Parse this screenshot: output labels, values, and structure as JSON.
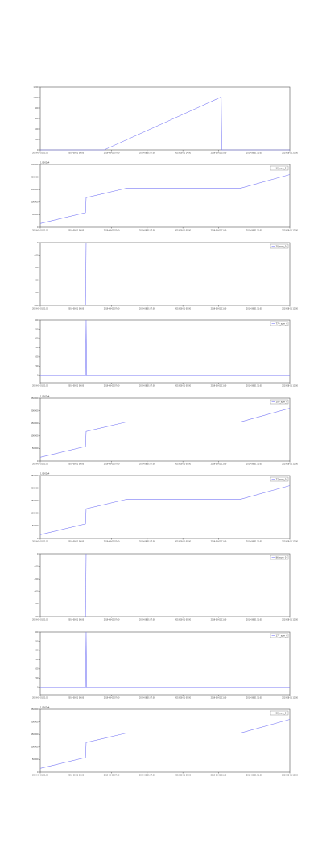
{
  "figure": {
    "line_color": "#7b7bf5",
    "frame_color": "#555555",
    "background": "#ffffff"
  },
  "chart_data": [
    {
      "type": "line",
      "title": "",
      "xlabel": "",
      "ylabel": "",
      "x_ticks": [
        "2019-08-01 01:00",
        "2019-08-01 06:00",
        "2019-08-01 07:00",
        "2019-08-01 07:00",
        "2019-08-01 14:00",
        "2019-08-01 15:00",
        "2019-08-01 11:00",
        "2019-08-01 23:00"
      ],
      "y_ticks": [
        "0",
        "200",
        "400",
        "600",
        "800",
        "1000",
        "1200"
      ],
      "ylim": [
        0,
        1200
      ],
      "legend": null,
      "offset_text": "",
      "series": [
        {
          "points": [
            [
              0,
              0
            ],
            [
              2.05,
              0
            ],
            [
              5.8,
              1010
            ],
            [
              5.82,
              0
            ],
            [
              8,
              0
            ]
          ]
        }
      ]
    },
    {
      "type": "line",
      "title": "",
      "xlabel": "",
      "ylabel": "",
      "x_ticks": [
        "2019-08-01 01:00",
        "2019-08-01 06:00",
        "2019-08-01 07:00",
        "2019-08-01 07:00",
        "2019-08-01 09:00",
        "2019-08-01 11:00",
        "2019-08-01 11:00",
        "2019-08-01 12:00"
      ],
      "y_ticks": [
        "0",
        "50000",
        "100000",
        "150000",
        "200000",
        "250000"
      ],
      "ylim": [
        0,
        250000
      ],
      "legend": {
        "label": "10_sym_0",
        "position": "top-right"
      },
      "offset_text": "1.0002e4",
      "series": [
        {
          "points": [
            [
              0,
              15000
            ],
            [
              1.45,
              58000
            ],
            [
              1.47,
              118000
            ],
            [
              2.75,
              155000
            ],
            [
              6.4,
              155000
            ],
            [
              8,
              210000
            ]
          ]
        }
      ]
    },
    {
      "type": "line",
      "title": "",
      "xlabel": "",
      "ylabel": "",
      "x_ticks": [
        "2019-08-01 01:00",
        "2019-08-01 06:00",
        "2019-08-01 07:00",
        "2019-08-01 07:00",
        "2019-08-01 09:00",
        "2019-08-01 11:00",
        "2019-08-01 11:00",
        "2019-08-01 12:00"
      ],
      "y_ticks": [
        "0",
        "-100",
        "-200",
        "-300",
        "-400",
        "-500"
      ],
      "ylim": [
        -500,
        0
      ],
      "legend": {
        "label": "20_sym_0",
        "position": "top-right"
      },
      "offset_text": "",
      "series": [
        {
          "points": [
            [
              1.45,
              -500
            ],
            [
              1.47,
              0
            ]
          ]
        }
      ]
    },
    {
      "type": "line",
      "title": "",
      "xlabel": "",
      "ylabel": "",
      "x_ticks": [
        "2019-08-01 01:00",
        "2019-08-01 06:00",
        "2019-08-01 07:00",
        "2019-08-01 07:00",
        "2019-08-01 09:00",
        "2019-08-01 11:00",
        "2019-08-01 11:00",
        "2019-08-01 12:00"
      ],
      "y_ticks": [
        "0",
        "50",
        "100",
        "150",
        "200",
        "250",
        "300"
      ],
      "ylim": [
        -40,
        300
      ],
      "legend": {
        "label": "770_sym_0",
        "position": "top-right"
      },
      "offset_text": "",
      "series": [
        {
          "points": [
            [
              0,
              0
            ],
            [
              1.45,
              0
            ],
            [
              1.47,
              300
            ],
            [
              1.49,
              0
            ],
            [
              8,
              0
            ]
          ]
        }
      ]
    },
    {
      "type": "line",
      "title": "",
      "xlabel": "",
      "ylabel": "",
      "x_ticks": [
        "2019-08-01 01:00",
        "2019-08-01 06:00",
        "2019-08-01 07:00",
        "2019-08-01 07:00",
        "2019-08-01 09:00",
        "2019-08-01 11:00",
        "2019-08-01 11:00",
        "2019-08-01 12:00"
      ],
      "y_ticks": [
        "0",
        "50000",
        "100000",
        "150000",
        "200000",
        "250000"
      ],
      "ylim": [
        0,
        250000
      ],
      "legend": {
        "label": "100_sym_0",
        "position": "top-right"
      },
      "offset_text": "1.0002e4",
      "series": [
        {
          "points": [
            [
              0,
              15000
            ],
            [
              1.45,
              58000
            ],
            [
              1.47,
              118000
            ],
            [
              2.75,
              155000
            ],
            [
              6.4,
              155000
            ],
            [
              8,
              210000
            ]
          ]
        }
      ]
    },
    {
      "type": "line",
      "title": "",
      "xlabel": "",
      "ylabel": "",
      "x_ticks": [
        "2019-08-01 01:00",
        "2019-08-01 06:00",
        "2019-08-01 07:00",
        "2019-08-01 07:00",
        "2019-08-01 09:00",
        "2019-08-01 11:00",
        "2019-08-01 11:00",
        "2019-08-01 12:00"
      ],
      "y_ticks": [
        "0",
        "50000",
        "100000",
        "150000",
        "200000",
        "250000"
      ],
      "ylim": [
        0,
        250000
      ],
      "legend": {
        "label": "77_sym_0",
        "position": "top-right"
      },
      "offset_text": "1.0002e4",
      "series": [
        {
          "points": [
            [
              0,
              15000
            ],
            [
              1.45,
              58000
            ],
            [
              1.47,
              118000
            ],
            [
              2.75,
              155000
            ],
            [
              6.4,
              155000
            ],
            [
              8,
              210000
            ]
          ]
        }
      ]
    },
    {
      "type": "line",
      "title": "",
      "xlabel": "",
      "ylabel": "",
      "x_ticks": [
        "2019-08-01 01:00",
        "2019-08-01 06:00",
        "2019-08-01 07:00",
        "2019-08-01 07:00",
        "2019-08-01 09:00",
        "2019-08-01 11:00",
        "2019-08-01 11:00",
        "2019-08-01 12:00"
      ],
      "y_ticks": [
        "0",
        "-100",
        "-200",
        "-300",
        "-400",
        "-500"
      ],
      "ylim": [
        -500,
        0
      ],
      "legend": {
        "label": "86_sym_0",
        "position": "top-right"
      },
      "offset_text": "",
      "series": [
        {
          "points": [
            [
              1.45,
              -500
            ],
            [
              1.47,
              0
            ]
          ]
        }
      ]
    },
    {
      "type": "line",
      "title": "",
      "xlabel": "",
      "ylabel": "",
      "x_ticks": [
        "2019-08-01 01:00",
        "2019-08-01 06:00",
        "2019-08-01 07:00",
        "2019-08-01 07:00",
        "2019-08-01 09:00",
        "2019-08-01 11:00",
        "2019-08-01 11:00",
        "2019-08-01 12:00"
      ],
      "y_ticks": [
        "0",
        "50",
        "100",
        "150",
        "200",
        "250",
        "300"
      ],
      "ylim": [
        -40,
        300
      ],
      "legend": {
        "label": "177_sym_0",
        "position": "top-right"
      },
      "offset_text": "",
      "series": [
        {
          "points": [
            [
              0,
              0
            ],
            [
              1.45,
              0
            ],
            [
              1.47,
              300
            ],
            [
              1.49,
              0
            ],
            [
              8,
              0
            ]
          ]
        }
      ]
    },
    {
      "type": "line",
      "title": "",
      "xlabel": "",
      "ylabel": "",
      "x_ticks": [
        "2019-08-01 01:00",
        "2019-08-01 06:00",
        "2019-08-01 07:00",
        "2019-08-01 07:00",
        "2019-08-01 09:00",
        "2019-08-01 11:00",
        "2019-08-01 11:00",
        "2019-08-01 12:00"
      ],
      "y_ticks": [
        "0",
        "50000",
        "100000",
        "150000",
        "200000",
        "250000"
      ],
      "ylim": [
        0,
        250000
      ],
      "legend": {
        "label": "88_sym_0",
        "position": "top-right"
      },
      "offset_text": "1.0002e4",
      "series": [
        {
          "points": [
            [
              0,
              15000
            ],
            [
              1.45,
              58000
            ],
            [
              1.47,
              118000
            ],
            [
              2.75,
              155000
            ],
            [
              6.4,
              155000
            ],
            [
              8,
              210000
            ]
          ]
        }
      ]
    }
  ]
}
